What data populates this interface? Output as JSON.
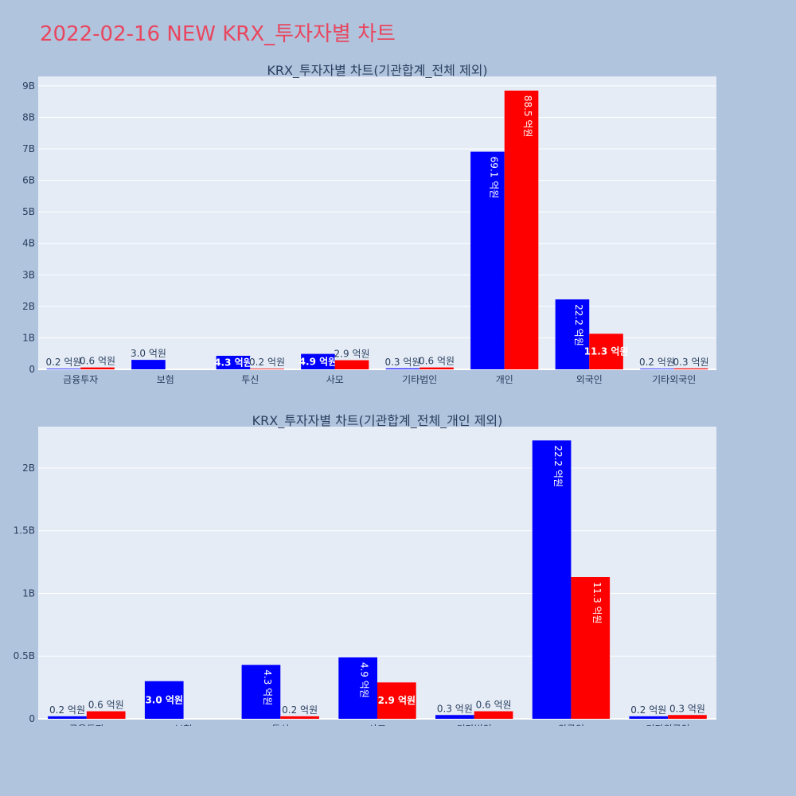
{
  "title": "2022-02-16 NEW KRX_투자자별 차트",
  "colors": {
    "background": "#b0c4de",
    "plot_bg": "#e5ecf6",
    "title": "#e8475f",
    "buy": "#0000ff",
    "sell": "#ff0000"
  },
  "chart_data": [
    {
      "type": "bar",
      "title": "KRX_투자자별 차트(기관합계_전체 제외)",
      "categories": [
        "금융투자",
        "보험",
        "투신",
        "사모",
        "기타법인",
        "개인",
        "외국인",
        "기타외국인"
      ],
      "series": [
        {
          "values": [
            0.02,
            0.3,
            0.43,
            0.49,
            0.03,
            6.91,
            2.22,
            0.02
          ],
          "labels": [
            "0.2 억원",
            "3.0 억원",
            "4.3 억원",
            "4.9 억원",
            "0.3 억원",
            "69.1 억원",
            "22.2 억원",
            "0.2 억원"
          ]
        },
        {
          "values": [
            0.06,
            0,
            0.02,
            0.29,
            0.06,
            8.85,
            1.13,
            0.03
          ],
          "labels": [
            "0.6 억원",
            "",
            "0.2 억원",
            "2.9 억원",
            "0.6 억원",
            "88.5 억원",
            "11.3 억원",
            "0.3 억원"
          ]
        }
      ],
      "ylim": [
        0,
        9.3
      ],
      "yticks": [
        0,
        1,
        2,
        3,
        4,
        5,
        6,
        7,
        8,
        9
      ],
      "ytick_labels": [
        "0",
        "1B",
        "2B",
        "3B",
        "4B",
        "5B",
        "6B",
        "7B",
        "8B",
        "9B"
      ],
      "grid": true
    },
    {
      "type": "bar",
      "title": "KRX_투자자별 차트(기관합계_전체_개인 제외)",
      "categories": [
        "금융투자",
        "보험",
        "투신",
        "사모",
        "기타법인",
        "외국인",
        "기타외국인"
      ],
      "series": [
        {
          "values": [
            0.02,
            0.3,
            0.43,
            0.49,
            0.03,
            2.22,
            0.02
          ],
          "labels": [
            "0.2 억원",
            "3.0 억원",
            "4.3 억원",
            "4.9 억원",
            "0.3 억원",
            "22.2 억원",
            "0.2 억원"
          ]
        },
        {
          "values": [
            0.06,
            0,
            0.02,
            0.29,
            0.06,
            1.13,
            0.03
          ],
          "labels": [
            "0.6 억원",
            "",
            "0.2 억원",
            "2.9 억원",
            "0.6 억원",
            "11.3 억원",
            "0.3 억원"
          ]
        }
      ],
      "ylim": [
        0,
        2.33
      ],
      "yticks": [
        0,
        0.5,
        1,
        1.5,
        2
      ],
      "ytick_labels": [
        "0",
        "0.5B",
        "1B",
        "1.5B",
        "2B"
      ],
      "grid": true
    }
  ]
}
